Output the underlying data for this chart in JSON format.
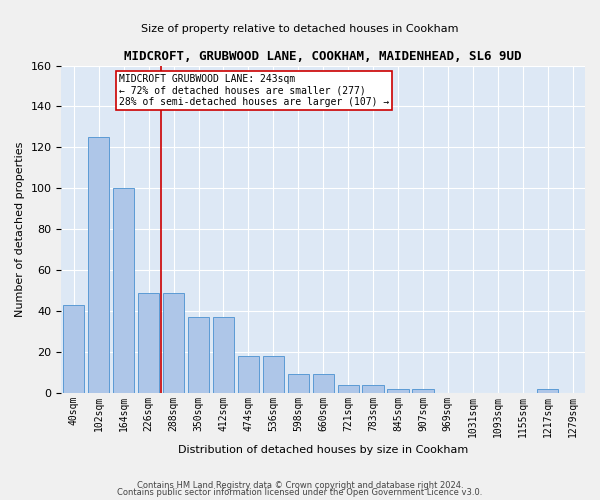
{
  "title": "MIDCROFT, GRUBWOOD LANE, COOKHAM, MAIDENHEAD, SL6 9UD",
  "subtitle": "Size of property relative to detached houses in Cookham",
  "xlabel": "Distribution of detached houses by size in Cookham",
  "ylabel": "Number of detached properties",
  "bar_color": "#aec6e8",
  "bar_edge_color": "#5b9bd5",
  "background_color": "#dde8f5",
  "grid_color": "#ffffff",
  "categories": [
    "40sqm",
    "102sqm",
    "164sqm",
    "226sqm",
    "288sqm",
    "350sqm",
    "412sqm",
    "474sqm",
    "536sqm",
    "598sqm",
    "660sqm",
    "721sqm",
    "783sqm",
    "845sqm",
    "907sqm",
    "969sqm",
    "1031sqm",
    "1093sqm",
    "1155sqm",
    "1217sqm",
    "1279sqm"
  ],
  "values": [
    43,
    125,
    100,
    49,
    49,
    37,
    37,
    18,
    18,
    9,
    9,
    4,
    4,
    2,
    2,
    0,
    0,
    0,
    0,
    2,
    0
  ],
  "ylim": [
    0,
    160
  ],
  "yticks": [
    0,
    20,
    40,
    60,
    80,
    100,
    120,
    140,
    160
  ],
  "vline_position": 3.5,
  "vline_color": "#cc0000",
  "annotation_text": "MIDCROFT GRUBWOOD LANE: 243sqm\n← 72% of detached houses are smaller (277)\n28% of semi-detached houses are larger (107) →",
  "footer1": "Contains HM Land Registry data © Crown copyright and database right 2024.",
  "footer2": "Contains public sector information licensed under the Open Government Licence v3.0."
}
